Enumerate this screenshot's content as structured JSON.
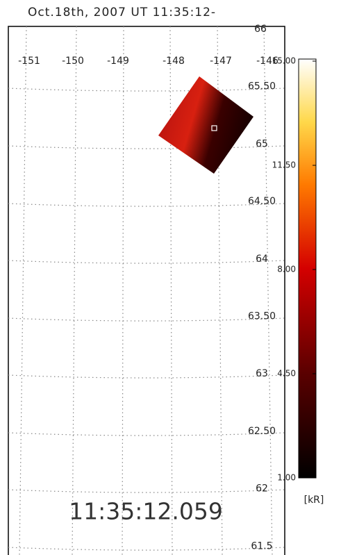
{
  "title": "Oct.18th, 2007 UT 11:35:12-",
  "map": {
    "longitude_labels": [
      "-151",
      "-150",
      "-149",
      "-148",
      "-147",
      "-146"
    ],
    "latitude_labels": [
      "66",
      "65.50",
      "65",
      "64.50",
      "64",
      "63.50",
      "63",
      "62.50",
      "62",
      "61.5"
    ],
    "timestamp": "11:35:12.059"
  },
  "colorbar": {
    "range": [
      1,
      15
    ],
    "ticks": [
      {
        "value": 15,
        "label": "15.00"
      },
      {
        "value": 11.5,
        "label": "11.50"
      },
      {
        "value": 8,
        "label": "8.00"
      },
      {
        "value": 4.5,
        "label": "4.50"
      },
      {
        "value": 1,
        "label": "1.00"
      }
    ],
    "unit": "[kR]"
  }
}
